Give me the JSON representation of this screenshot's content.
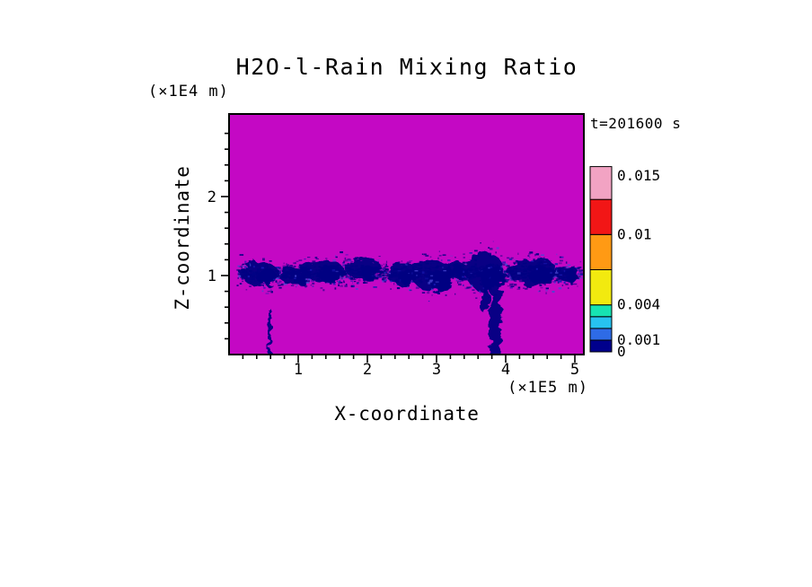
{
  "chart_data": {
    "type": "heatmap",
    "title": "H2O-l-Rain Mixing Ratio",
    "time_annotation": "t=201600 s",
    "xlabel": "X-coordinate",
    "x_unit": "(×1E5 m)",
    "ylabel": "Z-coordinate",
    "y_unit": "(×1E4 m)",
    "xlim": [
      0,
      5.13
    ],
    "zlim": [
      0,
      3.05
    ],
    "x_ticks": [
      1,
      2,
      3,
      4,
      5
    ],
    "y_ticks": [
      1,
      2
    ],
    "x_minor_step": 0.2,
    "y_minor_step": 0.2,
    "grid": false,
    "background_value": 0,
    "background_value_color": "#C408C4",
    "feature_color": "#000082",
    "speckle_colors": [
      "#000082",
      "#1A1AB4",
      "#4848D2"
    ],
    "colorbar": {
      "position": "right",
      "segments": [
        {
          "from": 0,
          "to": 0.001,
          "color": "#00008C"
        },
        {
          "from": 0.001,
          "to": 0.002,
          "color": "#2E6BE6"
        },
        {
          "from": 0.002,
          "to": 0.003,
          "color": "#27C3F0"
        },
        {
          "from": 0.003,
          "to": 0.004,
          "color": "#17E3B2"
        },
        {
          "from": 0.004,
          "to": 0.007,
          "color": "#F2EA0F"
        },
        {
          "from": 0.007,
          "to": 0.01,
          "color": "#FF9A14"
        },
        {
          "from": 0.01,
          "to": 0.013,
          "color": "#F21616"
        },
        {
          "from": 0.013,
          "to": 0.0158,
          "color": "#F2A3C3"
        }
      ],
      "labels": [
        {
          "value": 0.015,
          "label": "0.015"
        },
        {
          "value": 0.01,
          "label": "0.01"
        },
        {
          "value": 0.004,
          "label": "0.004"
        },
        {
          "value": 0.001,
          "label": "0.001"
        },
        {
          "value": 0,
          "label": "0"
        }
      ]
    },
    "features": [
      {
        "kind": "blob",
        "x": 0.45,
        "z": 1.02,
        "w": 0.55,
        "h": 0.3
      },
      {
        "kind": "blob",
        "x": 0.95,
        "z": 1.0,
        "w": 0.45,
        "h": 0.22
      },
      {
        "kind": "blob",
        "x": 1.35,
        "z": 1.05,
        "w": 0.65,
        "h": 0.28
      },
      {
        "kind": "blob",
        "x": 1.95,
        "z": 1.08,
        "w": 0.55,
        "h": 0.25
      },
      {
        "kind": "blob",
        "x": 2.5,
        "z": 1.02,
        "w": 0.45,
        "h": 0.28
      },
      {
        "kind": "blob",
        "x": 2.95,
        "z": 1.0,
        "w": 0.6,
        "h": 0.4
      },
      {
        "kind": "blob",
        "x": 3.3,
        "z": 1.05,
        "w": 0.35,
        "h": 0.22
      },
      {
        "kind": "blob",
        "x": 3.7,
        "z": 1.05,
        "w": 0.55,
        "h": 0.5
      },
      {
        "kind": "streak",
        "x": 3.7,
        "z": 0.8,
        "w": 0.1,
        "h": 0.55
      },
      {
        "kind": "streak",
        "x": 3.85,
        "z": 0.5,
        "w": 0.16,
        "h": 1.1
      },
      {
        "kind": "blob",
        "x": 4.4,
        "z": 1.05,
        "w": 0.7,
        "h": 0.35
      },
      {
        "kind": "blob",
        "x": 4.9,
        "z": 1.02,
        "w": 0.3,
        "h": 0.22
      },
      {
        "kind": "streak",
        "x": 0.585,
        "z": 0.28,
        "w": 0.05,
        "h": 0.6
      }
    ],
    "speckle_band": {
      "x_min": 0.12,
      "x_max": 5.08,
      "z_center": 1.03,
      "z_spread": 0.13,
      "count": 1500
    },
    "stray_speckles": {
      "x_min": 0.12,
      "x_max": 5.08,
      "z_center": 1.05,
      "z_spread": 0.3,
      "count": 260
    }
  },
  "colors": {
    "text": "#000000",
    "frame": "#000000",
    "page_background": "#FFFFFF"
  }
}
